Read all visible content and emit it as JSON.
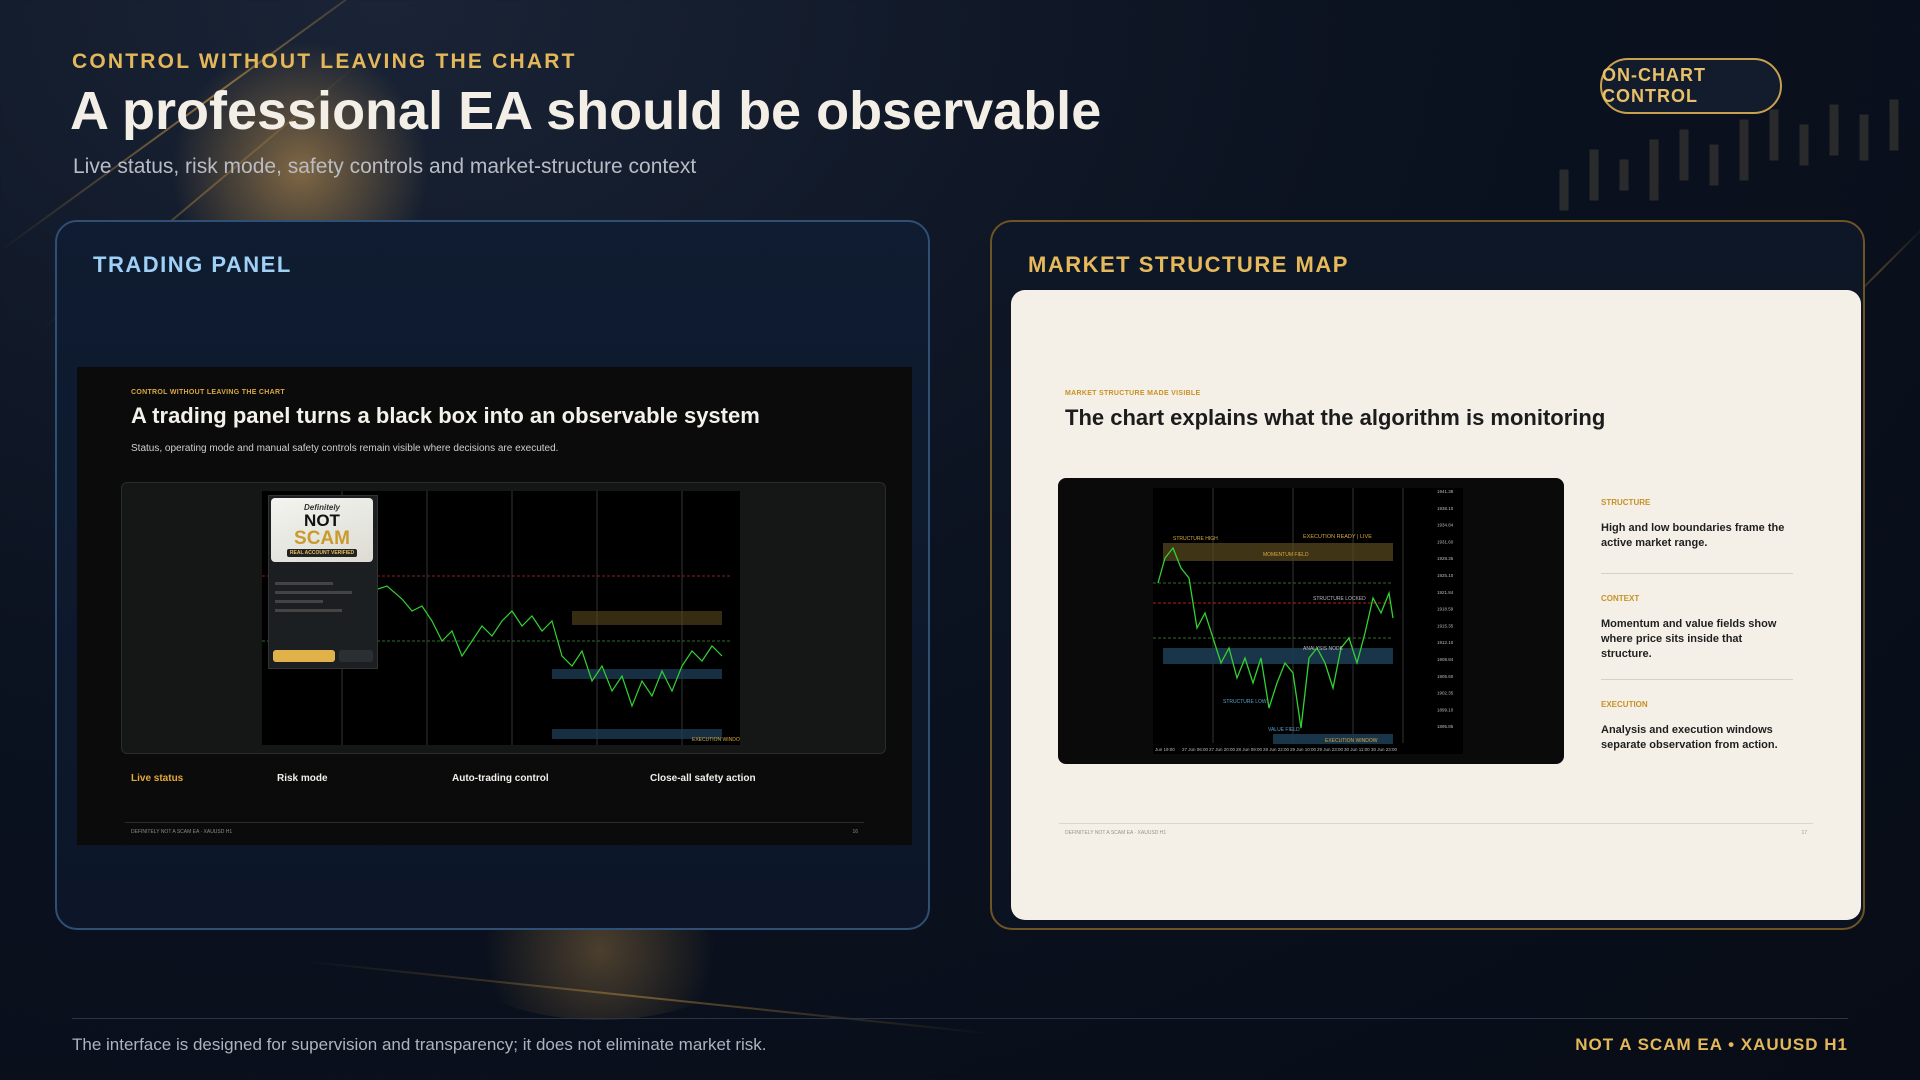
{
  "header": {
    "kicker": "CONTROL WITHOUT LEAVING THE CHART",
    "title": "A professional EA should be observable",
    "subtitle": "Live status, risk mode, safety controls and market-structure context",
    "badge": "ON-CHART CONTROL"
  },
  "left_card": {
    "label": "TRADING PANEL",
    "slide": {
      "kicker": "CONTROL WITHOUT LEAVING THE CHART",
      "title": "A trading panel turns a black box into an observable system",
      "subtitle": "Status, operating mode and manual safety controls remain visible where decisions are executed.",
      "logo": {
        "top": "Definitely",
        "line1": "NOT",
        "line2": "SCAM",
        "tag": "REAL ACCOUNT VERIFIED"
      },
      "features": [
        {
          "label": "Live status"
        },
        {
          "label": "Risk mode"
        },
        {
          "label": "Auto-trading control"
        },
        {
          "label": "Close-all safety action"
        }
      ],
      "footer_left": "DEFINITELY NOT A SCAM EA · XAUUSD H1",
      "page_number": "16"
    }
  },
  "right_card": {
    "label": "MARKET STRUCTURE MAP",
    "slide": {
      "kicker": "MARKET STRUCTURE MADE VISIBLE",
      "title": "The chart explains what the algorithm is monitoring",
      "chart_labels": {
        "structure_high": "STRUCTURE HIGH",
        "execution_ready": "EXECUTION READY | LIVE",
        "momentum_field": "MOMENTUM FIELD",
        "structure_locked": "STRUCTURE LOCKED",
        "analysis_node": "ANALYSIS NODE",
        "structure_low": "STRUCTURE LOW",
        "value_field": "VALUE FIELD",
        "execution_window": "EXECUTION WINDOW"
      },
      "x_ticks": [
        "Jun 19:00",
        "27 Jun 06:00",
        "27 Jun 20:00",
        "28 Jun 09:00",
        "28 Jun 22:00",
        "29 Jun 10:00",
        "29 Jun 23:00",
        "30 Jun 11:00",
        "30 Jun 23:00"
      ],
      "y_ticks": [
        "1941.38",
        "1938.10",
        "1934.84",
        "1931.60",
        "1928.35",
        "1925.10",
        "1921.84",
        "1918.59",
        "1915.35",
        "1912.10",
        "1908.84",
        "1905.60",
        "1902.35",
        "1899.10",
        "1895.85"
      ],
      "legend": [
        {
          "heading": "STRUCTURE",
          "text": "High and low boundaries frame the active market range."
        },
        {
          "heading": "CONTEXT",
          "text": "Momentum and value fields show where price sits inside that structure."
        },
        {
          "heading": "EXECUTION",
          "text": "Analysis and execution windows separate observation from action."
        }
      ],
      "footer_left": "DEFINITELY NOT A SCAM EA · XAUUSD H1",
      "page_number": "17"
    }
  },
  "footer": {
    "note": "The interface is designed for supervision and transparency; it does not eliminate market risk.",
    "brand": "NOT A SCAM EA • XAUUSD H1"
  },
  "colors": {
    "gold": "#e4b85a",
    "blue_label": "#9fd0f5",
    "background": "#0b1220",
    "light_slide": "#f4f0e7"
  }
}
